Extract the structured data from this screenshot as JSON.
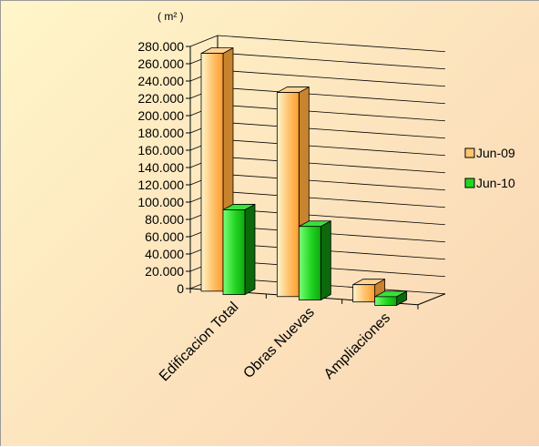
{
  "chart_data": {
    "type": "bar",
    "unit_label": "( m² )",
    "categories": [
      "Edificacion Total",
      "Obras Nuevas",
      "Ampliaciones"
    ],
    "series": [
      {
        "name": "Jun-09",
        "values": [
          275000,
          236000,
          20000
        ]
      },
      {
        "name": "Jun-10",
        "values": [
          98000,
          85000,
          10000
        ]
      }
    ],
    "ylim": [
      0,
      280000
    ],
    "y_ticks": [
      "0",
      "20.000",
      "40.000",
      "60.000",
      "80.000",
      "100.000",
      "120.000",
      "140.000",
      "160.000",
      "180.000",
      "200.000",
      "220.000",
      "240.000",
      "260.000",
      "280.000"
    ],
    "grid": true,
    "legend": "right",
    "colors": {
      "Jun-09": {
        "light": "#fff4c4",
        "mid": "#ffb04a",
        "dark": "#c8832e",
        "top": "#ffd494"
      },
      "Jun-10": {
        "light": "#66ff66",
        "mid": "#1fd21f",
        "dark": "#0c6a0c",
        "top": "#3ae03a"
      }
    }
  }
}
